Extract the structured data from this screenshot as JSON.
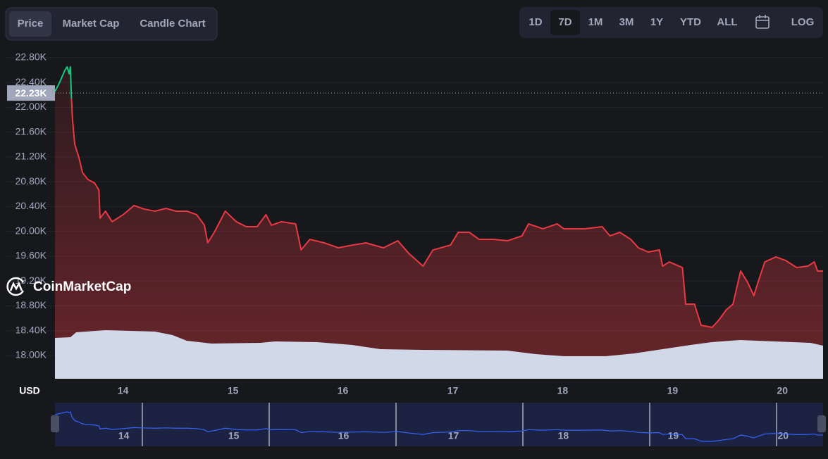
{
  "tabs": {
    "items": [
      "Price",
      "Market Cap",
      "Candle Chart"
    ],
    "active": 0
  },
  "ranges": {
    "items": [
      "1D",
      "7D",
      "1M",
      "3M",
      "1Y",
      "YTD",
      "ALL"
    ],
    "active": 1,
    "log": "LOG"
  },
  "watermark": "CoinMarketCap",
  "chart_data": {
    "type": "line",
    "y_label": "USD",
    "x": [
      13.38,
      13.42,
      13.47,
      13.49,
      13.51,
      13.52,
      13.53,
      13.54,
      13.56,
      13.6,
      13.63,
      13.68,
      13.74,
      13.78,
      13.79,
      13.84,
      13.9,
      14.0,
      14.1,
      14.19,
      14.29,
      14.39,
      14.48,
      14.58,
      14.67,
      14.74,
      14.77,
      14.83,
      14.93,
      15.03,
      15.12,
      15.22,
      15.3,
      15.35,
      15.44,
      15.57,
      15.62,
      15.7,
      15.83,
      15.96,
      16.09,
      16.21,
      16.37,
      16.5,
      16.6,
      16.73,
      16.82,
      16.98,
      17.05,
      17.15,
      17.24,
      17.37,
      17.5,
      17.63,
      17.69,
      17.82,
      17.95,
      18.01,
      18.2,
      18.36,
      18.43,
      18.52,
      18.62,
      18.69,
      18.78,
      18.88,
      18.91,
      18.97,
      19.09,
      19.12,
      19.2,
      19.26,
      19.36,
      19.42,
      19.49,
      19.55,
      19.62,
      19.68,
      19.74,
      19.78,
      19.84,
      19.94,
      20.03,
      20.13,
      20.23,
      20.29,
      20.32,
      20.37
    ],
    "values": [
      22255,
      22391,
      22596,
      22652,
      22539,
      22652,
      22142,
      21801,
      21404,
      21177,
      20950,
      20836,
      20780,
      20666,
      20212,
      20326,
      20156,
      20269,
      20417,
      20360,
      20326,
      20371,
      20326,
      20326,
      20269,
      20099,
      19815,
      19985,
      20326,
      20156,
      20076,
      20076,
      20269,
      20099,
      20156,
      20121,
      19701,
      19871,
      19815,
      19735,
      19780,
      19815,
      19735,
      19849,
      19645,
      19440,
      19701,
      19780,
      19985,
      19985,
      19871,
      19871,
      19849,
      19928,
      20121,
      20042,
      20121,
      20042,
      20042,
      20076,
      19928,
      19985,
      19871,
      19735,
      19667,
      19701,
      19440,
      19508,
      19417,
      18827,
      18827,
      18487,
      18453,
      18567,
      18737,
      18827,
      19361,
      19190,
      18963,
      19190,
      19508,
      19588,
      19531,
      19417,
      19440,
      19508,
      19361,
      19361
    ],
    "up_color": "#16c784",
    "down_color": "#ea3943",
    "xlim": [
      13.38,
      20.37
    ],
    "xticks": [
      14,
      15,
      16,
      17,
      18,
      19,
      20
    ],
    "ylim": [
      17625,
      22935
    ],
    "yticks": [
      {
        "value": 18000,
        "label": "18.00K"
      },
      {
        "value": 18400,
        "label": "18.40K"
      },
      {
        "value": 18800,
        "label": "18.80K"
      },
      {
        "value": 19200,
        "label": "19.20K"
      },
      {
        "value": 19600,
        "label": "19.60K"
      },
      {
        "value": 20000,
        "label": "20.00K"
      },
      {
        "value": 20400,
        "label": "20.40K"
      },
      {
        "value": 20800,
        "label": "20.80K"
      },
      {
        "value": 21200,
        "label": "21.20K"
      },
      {
        "value": 21600,
        "label": "21.60K"
      },
      {
        "value": 22000,
        "label": "22.00K"
      },
      {
        "value": 22400,
        "label": "22.40K"
      },
      {
        "value": 22800,
        "label": "22.80K"
      }
    ],
    "grid": true,
    "current_price": {
      "value": 22230,
      "label": "22.23K"
    }
  }
}
